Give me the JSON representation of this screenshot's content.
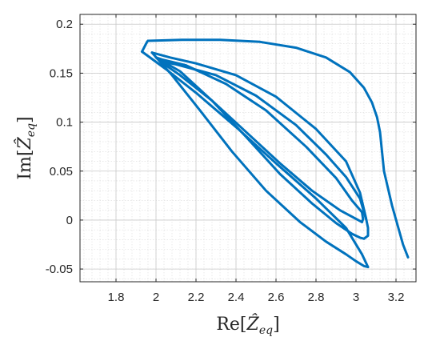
{
  "chart_data": {
    "type": "line",
    "xlabel": "Re[Ẑ_eq]",
    "ylabel": "Im[Ẑ_eq]",
    "xlabel_parts": {
      "pre": "Re[",
      "sym": "Ẑ",
      "sub": "eq",
      "post": "]"
    },
    "ylabel_parts": {
      "pre": "Im[",
      "sym": "Ẑ",
      "sub": "eq",
      "post": "]"
    },
    "xlim": [
      1.62,
      3.3
    ],
    "ylim": [
      -0.063,
      0.21
    ],
    "x_ticks": [
      1.8,
      2.0,
      2.2,
      2.4,
      2.6,
      2.8,
      3.0,
      3.2
    ],
    "x_tick_labels": [
      "1.8",
      "2",
      "2.2",
      "2.4",
      "2.6",
      "2.8",
      "3",
      "3.2"
    ],
    "y_ticks": [
      -0.05,
      0,
      0.05,
      0.1,
      0.15,
      0.2
    ],
    "y_tick_labels": [
      "-0.05",
      "0",
      "0.05",
      "0.1",
      "0.15",
      "0.2"
    ],
    "grid": true,
    "minor_grid": true,
    "line_color": "#0072BD",
    "series": [
      {
        "x": [
          3.26,
          3.235,
          3.18,
          3.14,
          3.13,
          3.12,
          3.105,
          3.08,
          3.04,
          2.97,
          2.85,
          2.7,
          2.52,
          2.32,
          2.13,
          1.96
        ],
        "y": [
          -0.038,
          -0.025,
          0.015,
          0.05,
          0.07,
          0.09,
          0.105,
          0.12,
          0.135,
          0.151,
          0.166,
          0.176,
          0.182,
          0.184,
          0.184,
          0.183
        ]
      },
      {
        "x": [
          1.93,
          1.955,
          1.96
        ],
        "y": [
          0.172,
          0.182,
          0.183
        ]
      },
      {
        "x": [
          1.93,
          2.05,
          2.2,
          2.4,
          2.6,
          2.8,
          2.95,
          3.03,
          3.06
        ],
        "y": [
          0.172,
          0.154,
          0.13,
          0.095,
          0.058,
          0.022,
          -0.008,
          -0.035,
          -0.048
        ]
      },
      {
        "x": [
          3.06,
          3.04,
          3.0,
          2.95,
          2.85,
          2.72,
          2.55,
          2.38,
          2.22,
          2.08,
          1.98
        ],
        "y": [
          -0.048,
          -0.047,
          -0.042,
          -0.035,
          -0.022,
          -0.002,
          0.03,
          0.07,
          0.112,
          0.148,
          0.171
        ]
      },
      {
        "x": [
          1.98,
          2.07,
          2.2,
          2.4,
          2.6,
          2.8,
          2.95,
          3.02,
          3.05
        ],
        "y": [
          0.171,
          0.166,
          0.16,
          0.148,
          0.126,
          0.093,
          0.06,
          0.028,
          0.002
        ]
      },
      {
        "x": [
          3.05,
          3.06,
          3.06,
          3.04
        ],
        "y": [
          0.002,
          -0.008,
          -0.016,
          -0.019
        ]
      },
      {
        "x": [
          3.04,
          3.02,
          2.98,
          2.9,
          2.78,
          2.62,
          2.45,
          2.28,
          2.12,
          2.0
        ],
        "y": [
          -0.019,
          -0.018,
          -0.014,
          -0.003,
          0.017,
          0.047,
          0.085,
          0.122,
          0.152,
          0.166
        ]
      },
      {
        "x": [
          2.0,
          2.03,
          2.15,
          2.35,
          2.55,
          2.75,
          2.9,
          2.98,
          3.03
        ],
        "y": [
          0.166,
          0.164,
          0.158,
          0.139,
          0.112,
          0.075,
          0.043,
          0.02,
          0.008
        ]
      },
      {
        "x": [
          3.03,
          3.035,
          3.03
        ],
        "y": [
          0.008,
          0.001,
          -0.002
        ]
      },
      {
        "x": [
          3.03,
          2.92,
          2.78,
          2.62,
          2.45,
          2.28,
          2.12,
          2.02
        ],
        "y": [
          -0.002,
          0.01,
          0.03,
          0.058,
          0.09,
          0.122,
          0.148,
          0.162
        ]
      },
      {
        "x": [
          2.02,
          2.1,
          2.3,
          2.5,
          2.7,
          2.85,
          2.95,
          3.02,
          3.05
        ],
        "y": [
          0.162,
          0.159,
          0.148,
          0.127,
          0.097,
          0.067,
          0.044,
          0.022,
          0.001
        ]
      }
    ]
  }
}
